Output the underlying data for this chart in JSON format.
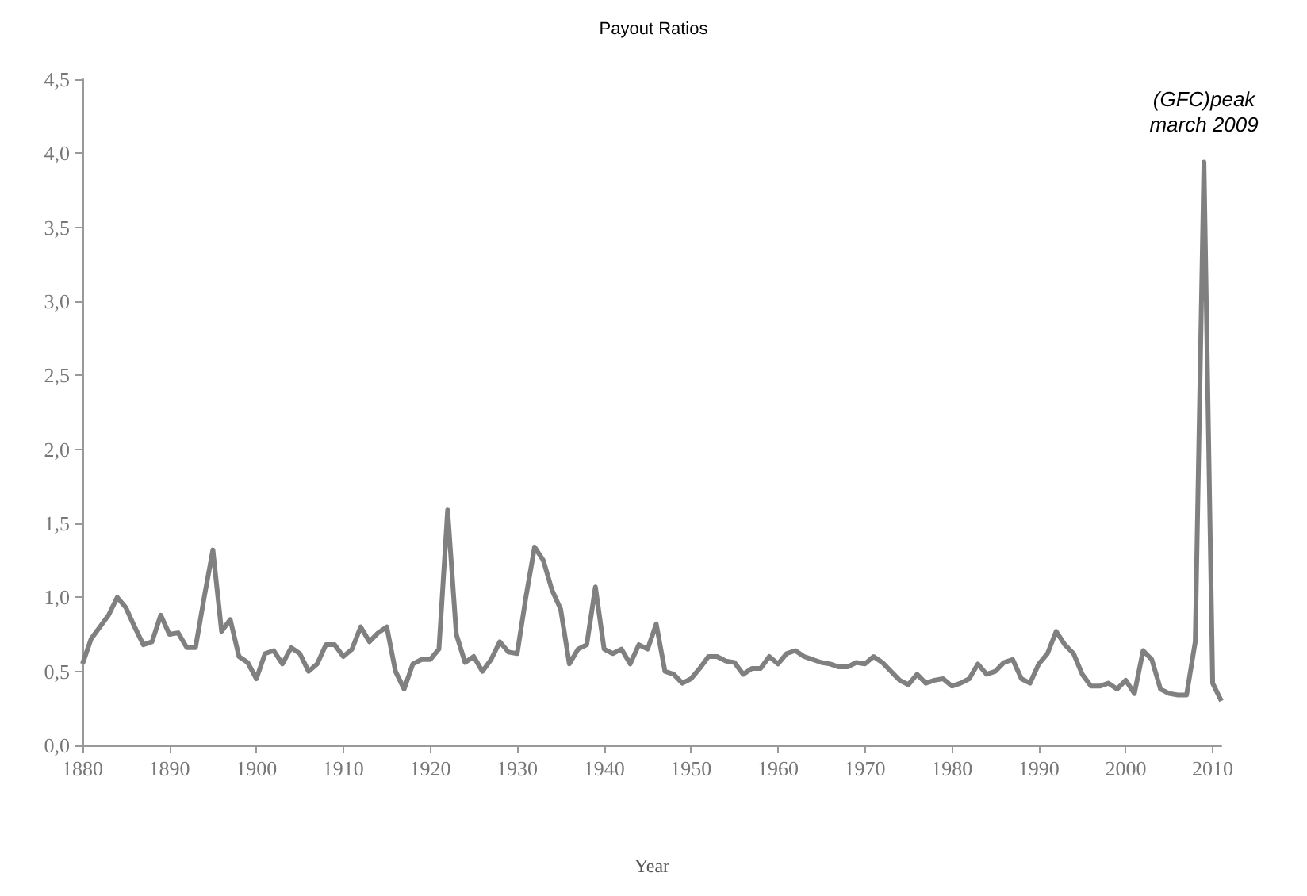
{
  "chart_data": {
    "type": "line",
    "title": "Payout Ratios",
    "xlabel": "Year",
    "annotations": [
      {
        "text": "(GFC)peak\nmarch 2009",
        "x": 2009,
        "y": 3.94
      }
    ],
    "x": [
      1880,
      1881,
      1882,
      1883,
      1884,
      1885,
      1886,
      1887,
      1888,
      1889,
      1890,
      1891,
      1892,
      1893,
      1894,
      1895,
      1896,
      1897,
      1898,
      1899,
      1900,
      1901,
      1902,
      1903,
      1904,
      1905,
      1906,
      1907,
      1908,
      1909,
      1910,
      1911,
      1912,
      1913,
      1914,
      1915,
      1916,
      1917,
      1918,
      1919,
      1920,
      1921,
      1922,
      1923,
      1924,
      1925,
      1926,
      1927,
      1928,
      1929,
      1930,
      1931,
      1932,
      1933,
      1934,
      1935,
      1936,
      1937,
      1938,
      1939,
      1940,
      1941,
      1942,
      1943,
      1944,
      1945,
      1946,
      1947,
      1948,
      1949,
      1950,
      1951,
      1952,
      1953,
      1954,
      1955,
      1956,
      1957,
      1958,
      1959,
      1960,
      1961,
      1962,
      1963,
      1964,
      1965,
      1966,
      1967,
      1968,
      1969,
      1970,
      1971,
      1972,
      1973,
      1974,
      1975,
      1976,
      1977,
      1978,
      1979,
      1980,
      1981,
      1982,
      1983,
      1984,
      1985,
      1986,
      1987,
      1988,
      1989,
      1990,
      1991,
      1992,
      1993,
      1994,
      1995,
      1996,
      1997,
      1998,
      1999,
      2000,
      2001,
      2002,
      2003,
      2004,
      2005,
      2006,
      2007,
      2008,
      2009,
      2010,
      2011
    ],
    "series": [
      {
        "color": "#808080",
        "values": [
          0.55,
          0.72,
          0.8,
          0.88,
          1.0,
          0.93,
          0.8,
          0.68,
          0.7,
          0.88,
          0.75,
          0.76,
          0.66,
          0.66,
          1.0,
          1.32,
          0.77,
          0.85,
          0.6,
          0.56,
          0.45,
          0.62,
          0.64,
          0.55,
          0.66,
          0.62,
          0.5,
          0.55,
          0.68,
          0.68,
          0.6,
          0.65,
          0.8,
          0.7,
          0.76,
          0.8,
          0.5,
          0.38,
          0.55,
          0.58,
          0.58,
          0.65,
          1.59,
          0.75,
          0.56,
          0.6,
          0.5,
          0.58,
          0.7,
          0.63,
          0.62,
          1.0,
          1.34,
          1.25,
          1.05,
          0.92,
          0.55,
          0.65,
          0.68,
          1.07,
          0.65,
          0.62,
          0.65,
          0.55,
          0.68,
          0.65,
          0.82,
          0.5,
          0.48,
          0.42,
          0.45,
          0.52,
          0.6,
          0.6,
          0.57,
          0.56,
          0.48,
          0.52,
          0.52,
          0.6,
          0.55,
          0.62,
          0.64,
          0.6,
          0.58,
          0.56,
          0.55,
          0.53,
          0.53,
          0.56,
          0.55,
          0.6,
          0.56,
          0.5,
          0.44,
          0.41,
          0.48,
          0.42,
          0.44,
          0.45,
          0.4,
          0.42,
          0.45,
          0.55,
          0.48,
          0.5,
          0.56,
          0.58,
          0.45,
          0.42,
          0.55,
          0.62,
          0.77,
          0.68,
          0.62,
          0.48,
          0.4,
          0.4,
          0.42,
          0.38,
          0.44,
          0.35,
          0.64,
          0.58,
          0.38,
          0.35,
          0.34,
          0.34,
          0.7,
          3.94,
          0.42,
          0.3
        ]
      }
    ],
    "xlim": [
      1880,
      2011
    ],
    "xticks": [
      1880,
      1890,
      1900,
      1910,
      1920,
      1930,
      1940,
      1950,
      1960,
      1970,
      1980,
      1990,
      2000,
      2010
    ],
    "ylim": [
      0,
      4.5
    ],
    "yticks": [
      {
        "value": 0,
        "label": "0,0"
      },
      {
        "value": 0.5,
        "label": "0,5"
      },
      {
        "value": 1,
        "label": "1,0"
      },
      {
        "value": 1.5,
        "label": "1,5"
      },
      {
        "value": 2,
        "label": "2,0"
      },
      {
        "value": 2.5,
        "label": "2,5"
      },
      {
        "value": 3,
        "label": "3,0"
      },
      {
        "value": 3.5,
        "label": "3,5"
      },
      {
        "value": 4,
        "label": "4,0"
      },
      {
        "value": 4.5,
        "label": "4,5"
      }
    ],
    "grid": false,
    "marker": "none",
    "line_style": "solid"
  }
}
